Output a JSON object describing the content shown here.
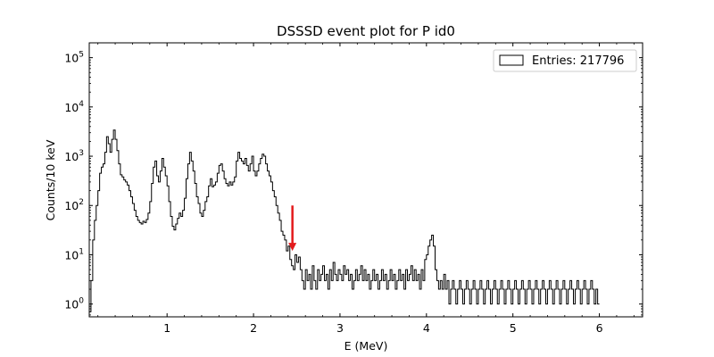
{
  "chart_data": {
    "type": "line",
    "step": true,
    "title": "DSSSD event plot for P id0",
    "xlabel": "E (MeV)",
    "ylabel": "Counts/10 keV",
    "xlim": [
      0.1,
      6.5
    ],
    "ylim": [
      0.55,
      200000
    ],
    "yscale": "log",
    "x_ticks": [
      {
        "value": 1,
        "label": "1"
      },
      {
        "value": 2,
        "label": "2"
      },
      {
        "value": 3,
        "label": "3"
      },
      {
        "value": 4,
        "label": "4"
      },
      {
        "value": 5,
        "label": "5"
      },
      {
        "value": 6,
        "label": "6"
      }
    ],
    "y_ticks": [
      {
        "value": 1,
        "base": "10",
        "exp": "0"
      },
      {
        "value": 10,
        "base": "10",
        "exp": "1"
      },
      {
        "value": 100,
        "base": "10",
        "exp": "2"
      },
      {
        "value": 1000,
        "base": "10",
        "exp": "3"
      },
      {
        "value": 10000,
        "base": "10",
        "exp": "4"
      },
      {
        "value": 100000,
        "base": "10",
        "exp": "5"
      }
    ],
    "grid": false,
    "legend": {
      "position": "top-right",
      "entries": [
        "Entries: 217796"
      ]
    },
    "annotation": {
      "type": "arrow",
      "color": "#e31a1c",
      "x": 2.45,
      "y_from": 100,
      "y_to": 12
    },
    "series": [
      {
        "color": "#000000",
        "points": [
          [
            0.1,
            0.7
          ],
          [
            0.12,
            3
          ],
          [
            0.14,
            20
          ],
          [
            0.16,
            50
          ],
          [
            0.18,
            100
          ],
          [
            0.2,
            200
          ],
          [
            0.22,
            450
          ],
          [
            0.24,
            600
          ],
          [
            0.26,
            700
          ],
          [
            0.28,
            1200
          ],
          [
            0.3,
            2500
          ],
          [
            0.32,
            1800
          ],
          [
            0.34,
            1200
          ],
          [
            0.36,
            2200
          ],
          [
            0.38,
            3400
          ],
          [
            0.4,
            2200
          ],
          [
            0.42,
            1300
          ],
          [
            0.44,
            700
          ],
          [
            0.46,
            420
          ],
          [
            0.48,
            380
          ],
          [
            0.5,
            330
          ],
          [
            0.52,
            300
          ],
          [
            0.54,
            260
          ],
          [
            0.56,
            200
          ],
          [
            0.58,
            150
          ],
          [
            0.6,
            110
          ],
          [
            0.62,
            80
          ],
          [
            0.64,
            60
          ],
          [
            0.66,
            50
          ],
          [
            0.68,
            45
          ],
          [
            0.7,
            42
          ],
          [
            0.72,
            48
          ],
          [
            0.74,
            45
          ],
          [
            0.76,
            52
          ],
          [
            0.78,
            70
          ],
          [
            0.8,
            120
          ],
          [
            0.82,
            280
          ],
          [
            0.84,
            600
          ],
          [
            0.86,
            800
          ],
          [
            0.88,
            400
          ],
          [
            0.9,
            300
          ],
          [
            0.92,
            500
          ],
          [
            0.94,
            900
          ],
          [
            0.96,
            600
          ],
          [
            0.98,
            400
          ],
          [
            1.0,
            250
          ],
          [
            1.02,
            120
          ],
          [
            1.04,
            60
          ],
          [
            1.06,
            38
          ],
          [
            1.08,
            32
          ],
          [
            1.1,
            42
          ],
          [
            1.12,
            55
          ],
          [
            1.14,
            70
          ],
          [
            1.16,
            60
          ],
          [
            1.18,
            80
          ],
          [
            1.2,
            140
          ],
          [
            1.22,
            350
          ],
          [
            1.24,
            700
          ],
          [
            1.26,
            1200
          ],
          [
            1.28,
            800
          ],
          [
            1.3,
            500
          ],
          [
            1.32,
            280
          ],
          [
            1.34,
            150
          ],
          [
            1.36,
            110
          ],
          [
            1.38,
            70
          ],
          [
            1.4,
            60
          ],
          [
            1.42,
            80
          ],
          [
            1.44,
            120
          ],
          [
            1.46,
            150
          ],
          [
            1.48,
            250
          ],
          [
            1.5,
            350
          ],
          [
            1.52,
            240
          ],
          [
            1.54,
            260
          ],
          [
            1.56,
            300
          ],
          [
            1.58,
            450
          ],
          [
            1.6,
            650
          ],
          [
            1.62,
            700
          ],
          [
            1.64,
            500
          ],
          [
            1.66,
            350
          ],
          [
            1.68,
            280
          ],
          [
            1.7,
            250
          ],
          [
            1.72,
            300
          ],
          [
            1.74,
            260
          ],
          [
            1.76,
            300
          ],
          [
            1.78,
            380
          ],
          [
            1.8,
            800
          ],
          [
            1.82,
            1200
          ],
          [
            1.84,
            900
          ],
          [
            1.86,
            800
          ],
          [
            1.88,
            700
          ],
          [
            1.9,
            900
          ],
          [
            1.92,
            650
          ],
          [
            1.94,
            500
          ],
          [
            1.96,
            700
          ],
          [
            1.98,
            1000
          ],
          [
            2.0,
            500
          ],
          [
            2.02,
            400
          ],
          [
            2.04,
            500
          ],
          [
            2.06,
            700
          ],
          [
            2.08,
            900
          ],
          [
            2.1,
            1100
          ],
          [
            2.12,
            1000
          ],
          [
            2.14,
            700
          ],
          [
            2.16,
            500
          ],
          [
            2.18,
            400
          ],
          [
            2.2,
            300
          ],
          [
            2.22,
            200
          ],
          [
            2.24,
            150
          ],
          [
            2.26,
            100
          ],
          [
            2.28,
            70
          ],
          [
            2.3,
            50
          ],
          [
            2.32,
            30
          ],
          [
            2.34,
            25
          ],
          [
            2.36,
            20
          ],
          [
            2.38,
            12
          ],
          [
            2.4,
            15
          ],
          [
            2.42,
            8
          ],
          [
            2.44,
            6
          ],
          [
            2.46,
            5
          ],
          [
            2.48,
            10
          ],
          [
            2.5,
            7
          ],
          [
            2.52,
            9
          ],
          [
            2.54,
            5
          ],
          [
            2.56,
            3
          ],
          [
            2.58,
            2
          ],
          [
            2.6,
            5
          ],
          [
            2.62,
            3
          ],
          [
            2.64,
            4
          ],
          [
            2.66,
            2
          ],
          [
            2.68,
            6
          ],
          [
            2.7,
            3
          ],
          [
            2.72,
            2
          ],
          [
            2.74,
            5
          ],
          [
            2.76,
            3
          ],
          [
            2.78,
            4
          ],
          [
            2.8,
            6
          ],
          [
            2.82,
            3
          ],
          [
            2.84,
            4
          ],
          [
            2.86,
            2
          ],
          [
            2.88,
            5
          ],
          [
            2.9,
            3
          ],
          [
            2.92,
            7
          ],
          [
            2.94,
            4
          ],
          [
            2.96,
            3
          ],
          [
            2.98,
            5
          ],
          [
            3.0,
            4
          ],
          [
            3.02,
            3
          ],
          [
            3.04,
            6
          ],
          [
            3.06,
            4
          ],
          [
            3.08,
            5
          ],
          [
            3.1,
            3
          ],
          [
            3.12,
            4
          ],
          [
            3.14,
            2
          ],
          [
            3.16,
            3
          ],
          [
            3.18,
            5
          ],
          [
            3.2,
            3
          ],
          [
            3.22,
            4
          ],
          [
            3.24,
            6
          ],
          [
            3.26,
            3
          ],
          [
            3.28,
            5
          ],
          [
            3.3,
            3
          ],
          [
            3.32,
            4
          ],
          [
            3.34,
            2
          ],
          [
            3.36,
            3
          ],
          [
            3.38,
            5
          ],
          [
            3.4,
            3
          ],
          [
            3.42,
            4
          ],
          [
            3.44,
            2
          ],
          [
            3.46,
            3
          ],
          [
            3.48,
            5
          ],
          [
            3.5,
            3
          ],
          [
            3.52,
            4
          ],
          [
            3.54,
            2
          ],
          [
            3.56,
            3
          ],
          [
            3.58,
            5
          ],
          [
            3.6,
            3
          ],
          [
            3.62,
            4
          ],
          [
            3.64,
            2
          ],
          [
            3.66,
            3
          ],
          [
            3.68,
            5
          ],
          [
            3.7,
            3
          ],
          [
            3.72,
            4
          ],
          [
            3.74,
            2
          ],
          [
            3.76,
            5
          ],
          [
            3.78,
            3
          ],
          [
            3.8,
            4
          ],
          [
            3.82,
            6
          ],
          [
            3.84,
            3
          ],
          [
            3.86,
            5
          ],
          [
            3.88,
            3
          ],
          [
            3.9,
            4
          ],
          [
            3.92,
            2
          ],
          [
            3.94,
            5
          ],
          [
            3.96,
            3
          ],
          [
            3.98,
            8
          ],
          [
            4.0,
            10
          ],
          [
            4.02,
            15
          ],
          [
            4.04,
            20
          ],
          [
            4.06,
            25
          ],
          [
            4.08,
            15
          ],
          [
            4.1,
            5
          ],
          [
            4.12,
            3
          ],
          [
            4.14,
            2
          ],
          [
            4.16,
            3
          ],
          [
            4.18,
            2
          ],
          [
            4.2,
            4
          ],
          [
            4.22,
            2
          ],
          [
            4.24,
            3
          ],
          [
            4.26,
            1
          ],
          [
            4.28,
            2
          ],
          [
            4.3,
            3
          ],
          [
            4.32,
            2
          ],
          [
            4.34,
            1
          ],
          [
            4.36,
            2
          ],
          [
            4.38,
            3
          ],
          [
            4.4,
            2
          ],
          [
            4.42,
            1
          ],
          [
            4.44,
            2
          ],
          [
            4.46,
            3
          ],
          [
            4.48,
            2
          ],
          [
            4.5,
            1
          ],
          [
            4.52,
            2
          ],
          [
            4.54,
            3
          ],
          [
            4.56,
            2
          ],
          [
            4.58,
            1
          ],
          [
            4.6,
            2
          ],
          [
            4.62,
            3
          ],
          [
            4.64,
            2
          ],
          [
            4.66,
            1
          ],
          [
            4.68,
            2
          ],
          [
            4.7,
            3
          ],
          [
            4.72,
            2
          ],
          [
            4.74,
            1
          ],
          [
            4.76,
            2
          ],
          [
            4.78,
            3
          ],
          [
            4.8,
            2
          ],
          [
            4.82,
            1
          ],
          [
            4.84,
            2
          ],
          [
            4.86,
            3
          ],
          [
            4.88,
            2
          ],
          [
            4.9,
            1
          ],
          [
            4.92,
            2
          ],
          [
            4.94,
            3
          ],
          [
            4.96,
            2
          ],
          [
            4.98,
            1
          ],
          [
            5.0,
            2
          ],
          [
            5.02,
            3
          ],
          [
            5.04,
            2
          ],
          [
            5.06,
            1
          ],
          [
            5.08,
            2
          ],
          [
            5.1,
            3
          ],
          [
            5.12,
            2
          ],
          [
            5.14,
            1
          ],
          [
            5.16,
            2
          ],
          [
            5.18,
            3
          ],
          [
            5.2,
            2
          ],
          [
            5.22,
            1
          ],
          [
            5.24,
            2
          ],
          [
            5.26,
            3
          ],
          [
            5.28,
            2
          ],
          [
            5.3,
            1
          ],
          [
            5.32,
            2
          ],
          [
            5.34,
            3
          ],
          [
            5.36,
            2
          ],
          [
            5.38,
            1
          ],
          [
            5.4,
            2
          ],
          [
            5.42,
            3
          ],
          [
            5.44,
            2
          ],
          [
            5.46,
            1
          ],
          [
            5.48,
            2
          ],
          [
            5.5,
            3
          ],
          [
            5.52,
            2
          ],
          [
            5.54,
            1
          ],
          [
            5.56,
            2
          ],
          [
            5.58,
            3
          ],
          [
            5.6,
            2
          ],
          [
            5.62,
            1
          ],
          [
            5.64,
            2
          ],
          [
            5.66,
            3
          ],
          [
            5.68,
            2
          ],
          [
            5.7,
            1
          ],
          [
            5.72,
            2
          ],
          [
            5.74,
            3
          ],
          [
            5.76,
            2
          ],
          [
            5.78,
            1
          ],
          [
            5.8,
            2
          ],
          [
            5.82,
            3
          ],
          [
            5.84,
            2
          ],
          [
            5.86,
            1
          ],
          [
            5.88,
            2
          ],
          [
            5.9,
            3
          ],
          [
            5.92,
            2
          ],
          [
            5.94,
            1
          ],
          [
            5.96,
            2
          ],
          [
            5.98,
            1
          ]
        ]
      }
    ]
  }
}
